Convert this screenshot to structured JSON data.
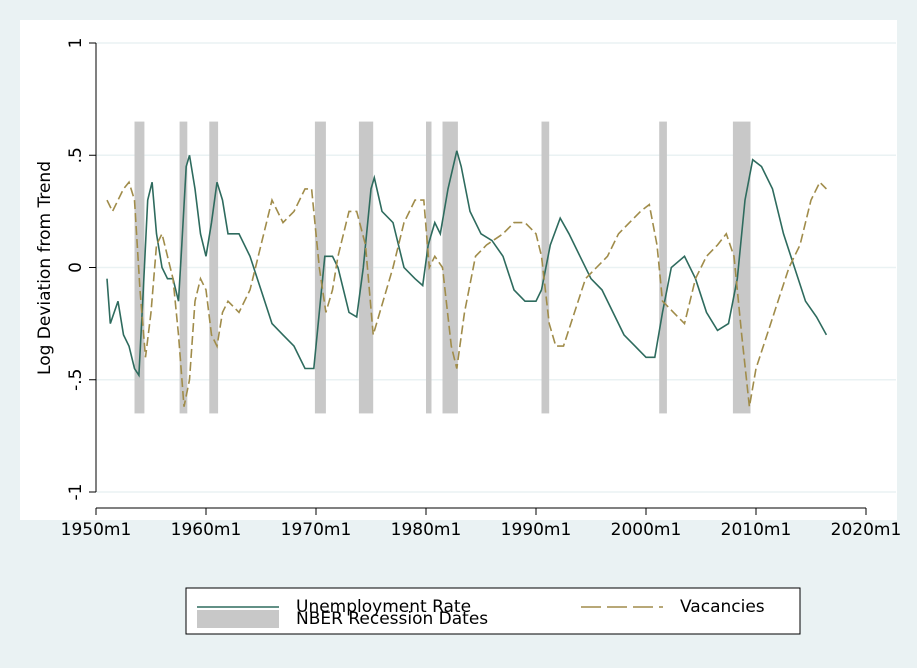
{
  "chart_data": {
    "type": "line",
    "y_label": "Log Deviation from Trend",
    "xlim": [
      1950,
      2020
    ],
    "xticks": [
      {
        "value": 1950,
        "label": "1950m1"
      },
      {
        "value": 1960,
        "label": "1960m1"
      },
      {
        "value": 1970,
        "label": "1970m1"
      },
      {
        "value": 1980,
        "label": "1980m1"
      },
      {
        "value": 1990,
        "label": "1990m1"
      },
      {
        "value": 2000,
        "label": "2000m1"
      },
      {
        "value": 2010,
        "label": "2010m1"
      },
      {
        "value": 2020,
        "label": "2020m1"
      }
    ],
    "ylim": [
      -1,
      1
    ],
    "yticks": [
      {
        "value": -1,
        "label": "-1"
      },
      {
        "value": -0.5,
        "label": "-.5"
      },
      0,
      {
        "value": 0.5,
        "label": ".5"
      },
      1
    ],
    "grid": true,
    "recessions": {
      "name": "NBER Recession Dates",
      "color": "#c8c8c8",
      "range": [
        -0.65,
        0.65
      ],
      "periods": [
        [
          1953.5,
          1954.4
        ],
        [
          1957.6,
          1958.3
        ],
        [
          1960.3,
          1961.1
        ],
        [
          1969.9,
          1970.9
        ],
        [
          1973.9,
          1975.2
        ],
        [
          1980.0,
          1980.5
        ],
        [
          1981.5,
          1982.9
        ],
        [
          1990.5,
          1991.2
        ],
        [
          2001.2,
          2001.9
        ],
        [
          2007.9,
          2009.5
        ]
      ]
    },
    "series": [
      {
        "name": "Unemployment Rate",
        "color": "#2e6b5e",
        "dash": false,
        "x": [
          1951.0,
          1951.3,
          1952,
          1952.5,
          1953,
          1953.5,
          1953.9,
          1954.3,
          1954.7,
          1955.1,
          1955.5,
          1956,
          1956.5,
          1957,
          1957.5,
          1957.8,
          1958.2,
          1958.5,
          1959,
          1959.5,
          1960,
          1960.5,
          1961,
          1961.5,
          1962,
          1963,
          1964,
          1965,
          1966,
          1967,
          1968,
          1969,
          1969.8,
          1970.3,
          1970.8,
          1971.5,
          1972,
          1972.5,
          1973,
          1973.7,
          1974.3,
          1975,
          1975.3,
          1976,
          1977,
          1978,
          1979,
          1979.7,
          1980.2,
          1980.8,
          1981.3,
          1982,
          1982.8,
          1983.2,
          1984,
          1985,
          1986,
          1987,
          1988,
          1989,
          1990,
          1990.5,
          1991.3,
          1992.2,
          1993,
          1994,
          1995,
          1996,
          1997,
          1998,
          1999,
          2000,
          2000.8,
          2001.5,
          2002.3,
          2003.5,
          2004.5,
          2005.5,
          2006.5,
          2007.5,
          2008.3,
          2009,
          2009.7,
          2010.5,
          2011.5,
          2012.5,
          2013.5,
          2014.5,
          2015.5,
          2016.4
        ],
        "values": [
          -0.05,
          -0.25,
          -0.15,
          -0.3,
          -0.35,
          -0.45,
          -0.48,
          -0.1,
          0.3,
          0.38,
          0.15,
          0.0,
          -0.05,
          -0.05,
          -0.15,
          0.1,
          0.45,
          0.5,
          0.35,
          0.15,
          0.05,
          0.2,
          0.38,
          0.3,
          0.15,
          0.15,
          0.05,
          -0.1,
          -0.25,
          -0.3,
          -0.35,
          -0.45,
          -0.45,
          -0.2,
          0.05,
          0.05,
          0.0,
          -0.1,
          -0.2,
          -0.22,
          0.0,
          0.35,
          0.4,
          0.25,
          0.2,
          0.0,
          -0.05,
          -0.08,
          0.1,
          0.2,
          0.15,
          0.35,
          0.52,
          0.45,
          0.25,
          0.15,
          0.12,
          0.05,
          -0.1,
          -0.15,
          -0.15,
          -0.1,
          0.1,
          0.22,
          0.15,
          0.05,
          -0.05,
          -0.1,
          -0.2,
          -0.3,
          -0.35,
          -0.4,
          -0.4,
          -0.2,
          0.0,
          0.05,
          -0.05,
          -0.2,
          -0.28,
          -0.25,
          -0.05,
          0.3,
          0.48,
          0.45,
          0.35,
          0.15,
          0.0,
          -0.15,
          -0.22,
          -0.3
        ]
      },
      {
        "name": "Vacancies",
        "color": "#a08c4a",
        "dash": true,
        "x": [
          1951,
          1951.5,
          1952.5,
          1953,
          1953.5,
          1954,
          1954.5,
          1955,
          1955.5,
          1956,
          1956.5,
          1957,
          1957.5,
          1958,
          1958.5,
          1959,
          1959.5,
          1960,
          1960.5,
          1961,
          1961.5,
          1962,
          1963,
          1964,
          1965,
          1966,
          1967,
          1968,
          1969,
          1969.6,
          1970.3,
          1970.9,
          1971.5,
          1972,
          1973,
          1973.7,
          1974.5,
          1975.2,
          1975.8,
          1977,
          1978,
          1979,
          1979.8,
          1980.3,
          1980.8,
          1981.5,
          1982.3,
          1982.8,
          1983.5,
          1984.5,
          1985.5,
          1987,
          1988,
          1989,
          1990,
          1990.5,
          1991.2,
          1991.8,
          1992.5,
          1993.5,
          1994.5,
          1995.5,
          1996.5,
          1997.5,
          1998.5,
          1999.5,
          2000.3,
          2001,
          2001.5,
          2002.5,
          2003.5,
          2004.5,
          2005.5,
          2006.5,
          2007.3,
          2008,
          2008.7,
          2009.4,
          2010,
          2011,
          2012,
          2013,
          2014,
          2015,
          2015.8,
          2016.4
        ],
        "values": [
          0.3,
          0.25,
          0.35,
          0.38,
          0.3,
          -0.1,
          -0.4,
          -0.2,
          0.1,
          0.15,
          0.05,
          -0.05,
          -0.3,
          -0.62,
          -0.5,
          -0.15,
          -0.05,
          -0.1,
          -0.3,
          -0.35,
          -0.2,
          -0.15,
          -0.2,
          -0.1,
          0.1,
          0.3,
          0.2,
          0.25,
          0.35,
          0.35,
          0.0,
          -0.2,
          -0.1,
          0.05,
          0.25,
          0.25,
          0.1,
          -0.3,
          -0.2,
          0.0,
          0.2,
          0.3,
          0.3,
          0.0,
          0.05,
          0.0,
          -0.35,
          -0.45,
          -0.2,
          0.05,
          0.1,
          0.15,
          0.2,
          0.2,
          0.15,
          0.05,
          -0.25,
          -0.35,
          -0.35,
          -0.2,
          -0.05,
          0.0,
          0.05,
          0.15,
          0.2,
          0.25,
          0.28,
          0.1,
          -0.15,
          -0.2,
          -0.25,
          -0.05,
          0.05,
          0.1,
          0.15,
          0.05,
          -0.3,
          -0.62,
          -0.45,
          -0.3,
          -0.15,
          0.0,
          0.1,
          0.3,
          0.38,
          0.35
        ]
      }
    ]
  }
}
